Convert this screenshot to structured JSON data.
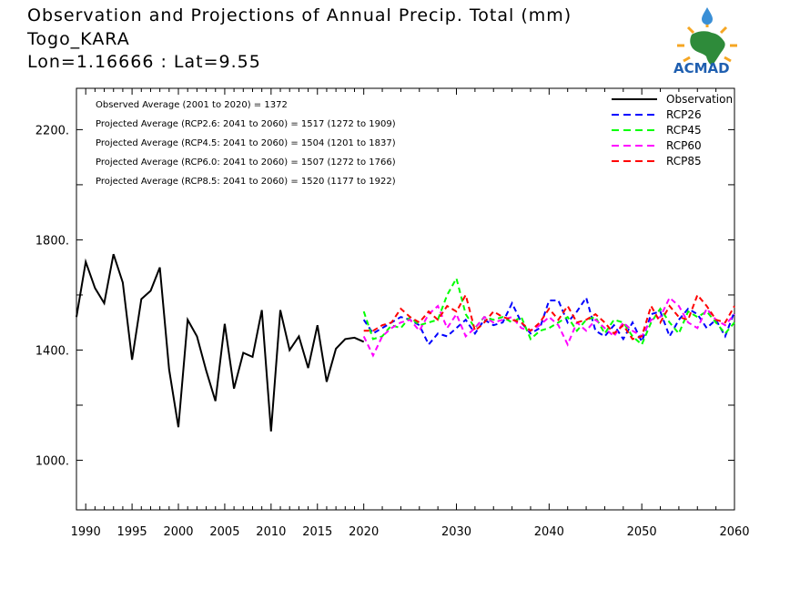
{
  "header": {
    "title": "Observation and Projections of Annual Precip. Total (mm)",
    "location": "Togo_KARA",
    "coords": "Lon=1.16666 : Lat=9.55"
  },
  "logo": {
    "text": "ACMAD"
  },
  "chart_data": {
    "type": "line",
    "title": "Observation and Projections of Annual Precip. Total (mm)",
    "xlabel": "",
    "ylabel": "",
    "xlim": [
      1989,
      2060
    ],
    "ylim": [
      820,
      2350
    ],
    "x_ticks": [
      1990,
      1995,
      2000,
      2005,
      2010,
      2015,
      2020,
      2030,
      2040,
      2050,
      2060
    ],
    "y_ticks": [
      1000,
      1400,
      1800,
      2200
    ],
    "y_tick_labels": [
      "1000.",
      "1400.",
      "1800.",
      "2200."
    ],
    "grid": false,
    "legend_position": "top-right",
    "annotations": [
      "Observed Average (2001 to 2020) = 1372",
      "Projected Average (RCP2.6: 2041 to 2060) = 1517 (1272 to 1909)",
      "Projected Average (RCP4.5: 2041 to 2060) = 1504 (1201 to 1837)",
      "Projected Average (RCP6.0: 2041 to 2060) = 1507 (1272 to 1766)",
      "Projected Average (RCP8.5: 2041 to 2060) = 1520 (1177 to 1922)"
    ],
    "series": [
      {
        "name": "Observation",
        "color": "#000000",
        "dash": "solid",
        "x": [
          1989,
          1990,
          1991,
          1992,
          1993,
          1994,
          1995,
          1996,
          1997,
          1998,
          1999,
          2000,
          2001,
          2002,
          2003,
          2004,
          2005,
          2006,
          2007,
          2008,
          2009,
          2010,
          2011,
          2012,
          2013,
          2014,
          2015,
          2016,
          2017,
          2018,
          2019,
          2020
        ],
        "values": [
          1520,
          1720,
          1625,
          1570,
          1748,
          1645,
          1365,
          1585,
          1615,
          1700,
          1330,
          1120,
          1510,
          1450,
          1325,
          1215,
          1495,
          1260,
          1390,
          1375,
          1545,
          1105,
          1545,
          1400,
          1450,
          1335,
          1490,
          1285,
          1405,
          1440,
          1445,
          1430
        ]
      },
      {
        "name": "RCP26",
        "color": "#0000ff",
        "dash": "dashed",
        "x": [
          2020,
          2021,
          2022,
          2023,
          2024,
          2025,
          2026,
          2027,
          2028,
          2029,
          2030,
          2031,
          2032,
          2033,
          2034,
          2035,
          2036,
          2037,
          2038,
          2039,
          2040,
          2041,
          2042,
          2043,
          2044,
          2045,
          2046,
          2047,
          2048,
          2049,
          2050,
          2051,
          2052,
          2053,
          2054,
          2055,
          2056,
          2057,
          2058,
          2059,
          2060
        ],
        "values": [
          1510,
          1460,
          1480,
          1500,
          1520,
          1510,
          1490,
          1420,
          1460,
          1450,
          1480,
          1510,
          1460,
          1510,
          1490,
          1500,
          1570,
          1500,
          1460,
          1480,
          1580,
          1580,
          1500,
          1540,
          1590,
          1470,
          1450,
          1490,
          1440,
          1500,
          1430,
          1530,
          1540,
          1450,
          1510,
          1550,
          1530,
          1480,
          1510,
          1450,
          1540
        ]
      },
      {
        "name": "RCP45",
        "color": "#00ff00",
        "dash": "dashed",
        "x": [
          2020,
          2021,
          2022,
          2023,
          2024,
          2025,
          2026,
          2027,
          2028,
          2029,
          2030,
          2031,
          2032,
          2033,
          2034,
          2035,
          2036,
          2037,
          2038,
          2039,
          2040,
          2041,
          2042,
          2043,
          2044,
          2045,
          2046,
          2047,
          2048,
          2049,
          2050,
          2051,
          2052,
          2053,
          2054,
          2055,
          2056,
          2057,
          2058,
          2059,
          2060
        ],
        "values": [
          1540,
          1440,
          1450,
          1490,
          1480,
          1520,
          1490,
          1500,
          1510,
          1600,
          1660,
          1530,
          1480,
          1520,
          1510,
          1520,
          1500,
          1520,
          1440,
          1470,
          1480,
          1500,
          1520,
          1470,
          1510,
          1520,
          1460,
          1510,
          1500,
          1450,
          1420,
          1500,
          1550,
          1500,
          1460,
          1540,
          1520,
          1540,
          1500,
          1460,
          1500
        ]
      },
      {
        "name": "RCP60",
        "color": "#ff00ff",
        "dash": "dashed",
        "x": [
          2020,
          2021,
          2022,
          2023,
          2024,
          2025,
          2026,
          2027,
          2028,
          2029,
          2030,
          2031,
          2032,
          2033,
          2034,
          2035,
          2036,
          2037,
          2038,
          2039,
          2040,
          2041,
          2042,
          2043,
          2044,
          2045,
          2046,
          2047,
          2048,
          2049,
          2050,
          2051,
          2052,
          2053,
          2054,
          2055,
          2056,
          2057,
          2058,
          2059,
          2060
        ],
        "values": [
          1450,
          1380,
          1450,
          1480,
          1500,
          1510,
          1470,
          1530,
          1560,
          1480,
          1530,
          1450,
          1480,
          1520,
          1500,
          1510,
          1520,
          1480,
          1470,
          1490,
          1520,
          1490,
          1420,
          1500,
          1470,
          1510,
          1480,
          1450,
          1500,
          1470,
          1450,
          1510,
          1520,
          1590,
          1560,
          1500,
          1480,
          1550,
          1510,
          1490,
          1530
        ]
      },
      {
        "name": "RCP85",
        "color": "#ff0000",
        "dash": "dashed",
        "x": [
          2020,
          2021,
          2022,
          2023,
          2024,
          2025,
          2026,
          2027,
          2028,
          2029,
          2030,
          2031,
          2032,
          2033,
          2034,
          2035,
          2036,
          2037,
          2038,
          2039,
          2040,
          2041,
          2042,
          2043,
          2044,
          2045,
          2046,
          2047,
          2048,
          2049,
          2050,
          2051,
          2052,
          2053,
          2054,
          2055,
          2056,
          2057,
          2058,
          2059,
          2060
        ],
        "values": [
          1470,
          1470,
          1490,
          1500,
          1550,
          1520,
          1500,
          1540,
          1510,
          1560,
          1540,
          1600,
          1470,
          1500,
          1540,
          1520,
          1510,
          1500,
          1470,
          1500,
          1550,
          1510,
          1560,
          1500,
          1510,
          1530,
          1500,
          1460,
          1490,
          1440,
          1450,
          1560,
          1500,
          1560,
          1520,
          1510,
          1600,
          1560,
          1510,
          1500,
          1560
        ]
      }
    ]
  }
}
